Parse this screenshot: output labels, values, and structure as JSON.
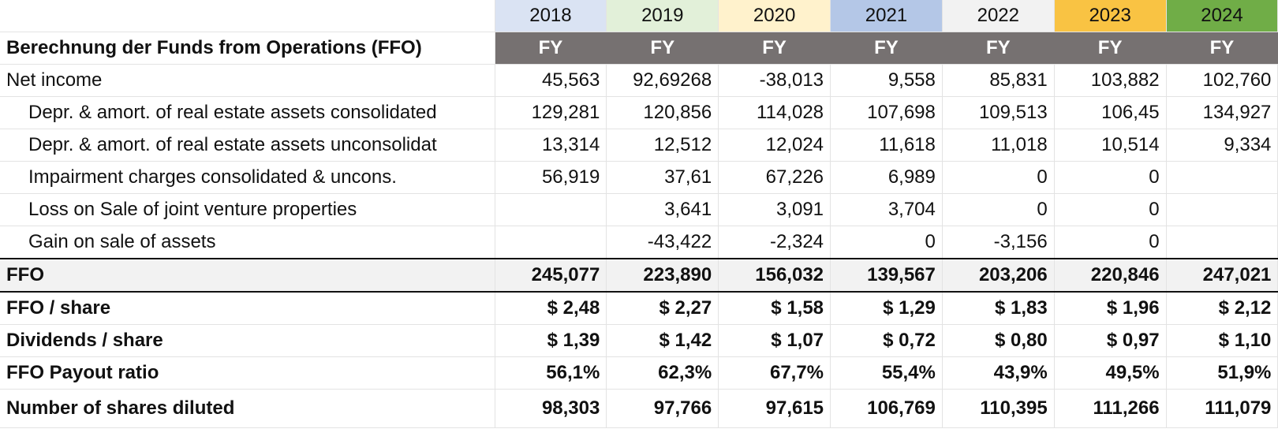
{
  "years": [
    {
      "label": "2018",
      "color": "#dae3f3"
    },
    {
      "label": "2019",
      "color": "#e2f0d9"
    },
    {
      "label": "2020",
      "color": "#fff2cc"
    },
    {
      "label": "2021",
      "color": "#b4c7e7"
    },
    {
      "label": "2022",
      "color": "#f2f2f2"
    },
    {
      "label": "2023",
      "color": "#f9c343"
    },
    {
      "label": "2024",
      "color": "#70ad47"
    }
  ],
  "header": {
    "title": "Berechnung der Funds from Operations (FFO)",
    "period": [
      "FY",
      "FY",
      "FY",
      "FY",
      "FY",
      "FY",
      "FY"
    ]
  },
  "rows": [
    {
      "label": "Net income",
      "values": [
        "45,563",
        "92,69268",
        "-38,013",
        "9,558",
        "85,831",
        "103,882",
        "102,760"
      ]
    },
    {
      "label": "Depr. & amort. of real estate assets consolidated",
      "values": [
        "129,281",
        "120,856",
        "114,028",
        "107,698",
        "109,513",
        "106,45",
        "134,927"
      ]
    },
    {
      "label": "Depr. & amort. of real estate assets unconsolidat",
      "values": [
        "13,314",
        "12,512",
        "12,024",
        "11,618",
        "11,018",
        "10,514",
        "9,334"
      ]
    },
    {
      "label": "Impairment charges  consolidated & uncons.",
      "values": [
        "56,919",
        "37,61",
        "67,226",
        "6,989",
        "0",
        "0",
        ""
      ]
    },
    {
      "label": "Loss on Sale of joint venture properties",
      "values": [
        "",
        "3,641",
        "3,091",
        "3,704",
        "0",
        "0",
        ""
      ]
    },
    {
      "label": "Gain on sale of assets",
      "values": [
        "",
        "-43,422",
        "-2,324",
        "0",
        "-3,156",
        "0",
        ""
      ]
    }
  ],
  "ffo": {
    "label": "FFO",
    "values": [
      "245,077",
      "223,890",
      "156,032",
      "139,567",
      "203,206",
      "220,846",
      "247,021"
    ]
  },
  "summary": [
    {
      "label": "FFO / share",
      "values": [
        "$ 2,48",
        "$ 2,27",
        "$ 1,58",
        "$ 1,29",
        "$ 1,83",
        "$ 1,96",
        "$ 2,12"
      ]
    },
    {
      "label": "Dividends / share",
      "values": [
        "$ 1,39",
        "$ 1,42",
        "$ 1,07",
        "$ 0,72",
        "$ 0,80",
        "$ 0,97",
        "$ 1,10"
      ]
    },
    {
      "label": "FFO Payout ratio",
      "values": [
        "56,1%",
        "62,3%",
        "67,7%",
        "55,4%",
        "43,9%",
        "49,5%",
        "51,9%"
      ]
    },
    {
      "label": "Number of shares diluted",
      "values": [
        "98,303",
        "97,766",
        "97,615",
        "106,769",
        "110,395",
        "111,266",
        "111,079"
      ]
    }
  ]
}
